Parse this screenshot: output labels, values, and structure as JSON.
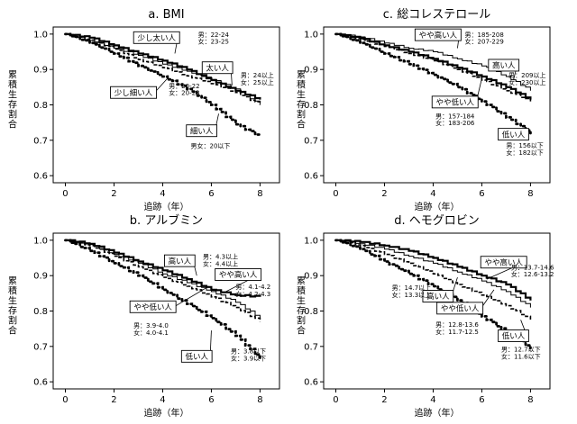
{
  "chart_data": [
    {
      "type": "line",
      "title": "a. BMI",
      "xlabel": "追跡（年）",
      "ylabel": "累積生存割合",
      "xlim": [
        -0.5,
        8.8
      ],
      "ylim": [
        0.58,
        1.02
      ],
      "xticks": [
        "0",
        "2",
        "4",
        "6",
        "8"
      ],
      "yticks": [
        "0.6",
        "0.7",
        "0.8",
        "0.9",
        "1.0"
      ],
      "series": [
        {
          "name": "少し太い人",
          "style": "thin",
          "x": [
            0,
            1,
            2,
            3,
            4,
            5,
            6,
            7,
            8
          ],
          "y": [
            1.0,
            0.982,
            0.96,
            0.94,
            0.915,
            0.895,
            0.872,
            0.845,
            0.8
          ]
        },
        {
          "name": "太い人",
          "style": "thick",
          "x": [
            0,
            1,
            2,
            3,
            4,
            5,
            6,
            7,
            8
          ],
          "y": [
            1.0,
            0.99,
            0.968,
            0.945,
            0.925,
            0.9,
            0.87,
            0.84,
            0.815
          ]
        },
        {
          "name": "少し細い人",
          "style": "dashed",
          "x": [
            0,
            1,
            2,
            3,
            4,
            5,
            6,
            7,
            8
          ],
          "y": [
            1.0,
            0.983,
            0.958,
            0.928,
            0.905,
            0.882,
            0.86,
            0.835,
            0.8
          ]
        },
        {
          "name": "細い人",
          "style": "dotted",
          "x": [
            0,
            1,
            2,
            3,
            4,
            5,
            6,
            7,
            8
          ],
          "y": [
            1.0,
            0.975,
            0.945,
            0.91,
            0.88,
            0.845,
            0.8,
            0.745,
            0.71
          ]
        }
      ],
      "annotations": [
        {
          "text": "少し太い人",
          "boxed": true,
          "cx": 3.75,
          "cy": 0.99,
          "tx": 4.5,
          "ty": 0.945
        },
        {
          "text": "太い人",
          "boxed": true,
          "cx": 6.25,
          "cy": 0.905,
          "tx": 6.85,
          "ty": 0.855
        },
        {
          "text": "少し細い人",
          "boxed": true,
          "cx": 2.8,
          "cy": 0.835,
          "tx": 4.2,
          "ty": 0.875
        },
        {
          "text": "細い人",
          "boxed": true,
          "cx": 5.6,
          "cy": 0.727,
          "tx": 6.3,
          "ty": 0.775
        },
        {
          "text": "男：22-24",
          "x": 5.45,
          "y": 1.0
        },
        {
          "text": "女：23-25",
          "x": 5.45,
          "y": 0.98
        },
        {
          "text": "男：24以上",
          "x": 7.2,
          "y": 0.885
        },
        {
          "text": "女：25以上",
          "x": 7.2,
          "y": 0.865
        },
        {
          "text": "男：20-22",
          "x": 4.25,
          "y": 0.855
        },
        {
          "text": "女：20-23",
          "x": 4.25,
          "y": 0.835
        },
        {
          "text": "男女：20以下",
          "x": 5.15,
          "y": 0.685
        }
      ]
    },
    {
      "type": "line",
      "title": "c. 総コレステロール",
      "xlabel": "追跡（年）",
      "ylabel": "累積生存割合",
      "xlim": [
        -0.5,
        8.8
      ],
      "ylim": [
        0.58,
        1.02
      ],
      "xticks": [
        "0",
        "2",
        "4",
        "6",
        "8"
      ],
      "yticks": [
        "0.6",
        "0.7",
        "0.8",
        "0.9",
        "1.0"
      ],
      "series": [
        {
          "name": "やや高い人",
          "style": "thin",
          "x": [
            0,
            1,
            2,
            3,
            4,
            5,
            6,
            7,
            8
          ],
          "y": [
            1.0,
            0.992,
            0.975,
            0.96,
            0.95,
            0.93,
            0.91,
            0.88,
            0.84
          ]
        },
        {
          "name": "高い人",
          "style": "thick",
          "x": [
            0,
            1,
            2,
            3,
            4,
            5,
            6,
            7,
            8
          ],
          "y": [
            1.0,
            0.988,
            0.968,
            0.95,
            0.93,
            0.905,
            0.88,
            0.85,
            0.815
          ]
        },
        {
          "name": "やや低い人",
          "style": "dashed",
          "x": [
            0,
            1,
            2,
            3,
            4,
            5,
            6,
            7,
            8
          ],
          "y": [
            1.0,
            0.985,
            0.965,
            0.945,
            0.925,
            0.9,
            0.87,
            0.84,
            0.81
          ]
        },
        {
          "name": "低い人",
          "style": "dotted",
          "x": [
            0,
            1,
            2,
            3,
            4,
            5,
            6,
            7,
            8
          ],
          "y": [
            1.0,
            0.975,
            0.945,
            0.915,
            0.885,
            0.85,
            0.81,
            0.765,
            0.72
          ]
        }
      ],
      "annotations": [
        {
          "text": "やや高い人",
          "boxed": true,
          "cx": 4.2,
          "cy": 0.998,
          "tx": 5.0,
          "ty": 0.96
        },
        {
          "text": "高い人",
          "boxed": true,
          "cx": 6.9,
          "cy": 0.912,
          "tx": 7.3,
          "ty": 0.87
        },
        {
          "text": "やや低い人",
          "boxed": true,
          "cx": 4.9,
          "cy": 0.808,
          "tx": 6.0,
          "ty": 0.875
        },
        {
          "text": "低い人",
          "boxed": true,
          "cx": 7.3,
          "cy": 0.717,
          "tx": 7.75,
          "ty": 0.73
        },
        {
          "text": "男：185-208",
          "x": 5.3,
          "y": 1.0
        },
        {
          "text": "女：207-229",
          "x": 5.3,
          "y": 0.98
        },
        {
          "text": "男：209以上",
          "x": 7.1,
          "y": 0.885
        },
        {
          "text": "女：230以上",
          "x": 7.1,
          "y": 0.865
        },
        {
          "text": "男：157-184",
          "x": 4.1,
          "y": 0.77
        },
        {
          "text": "女：183-206",
          "x": 4.1,
          "y": 0.75
        },
        {
          "text": "男：156以下",
          "x": 7.0,
          "y": 0.687
        },
        {
          "text": "女：182以下",
          "x": 7.0,
          "y": 0.667
        }
      ]
    },
    {
      "type": "line",
      "title": "b. アルブミン",
      "xlabel": "追跡（年）",
      "ylabel": "累積生存割合",
      "xlim": [
        -0.5,
        8.8
      ],
      "ylim": [
        0.58,
        1.02
      ],
      "xticks": [
        "0",
        "2",
        "4",
        "6",
        "8"
      ],
      "yticks": [
        "0.6",
        "0.7",
        "0.8",
        "0.9",
        "1.0"
      ],
      "series": [
        {
          "name": "高い人",
          "style": "thick",
          "x": [
            0,
            1,
            2,
            3,
            4,
            5,
            6,
            7,
            8
          ],
          "y": [
            1.0,
            0.99,
            0.965,
            0.94,
            0.915,
            0.89,
            0.86,
            0.845,
            0.84
          ]
        },
        {
          "name": "やや高い人",
          "style": "thin",
          "x": [
            0,
            1,
            2,
            3,
            4,
            5,
            6,
            7,
            8
          ],
          "y": [
            1.0,
            0.988,
            0.96,
            0.935,
            0.905,
            0.88,
            0.855,
            0.825,
            0.78
          ]
        },
        {
          "name": "やや低い人",
          "style": "dashed",
          "x": [
            0,
            1,
            2,
            3,
            4,
            5,
            6,
            7,
            8
          ],
          "y": [
            1.0,
            0.985,
            0.955,
            0.925,
            0.895,
            0.87,
            0.84,
            0.81,
            0.77
          ]
        },
        {
          "name": "低い人",
          "style": "dotted",
          "x": [
            0,
            1,
            2,
            3,
            4,
            5,
            6,
            7,
            8
          ],
          "y": [
            1.0,
            0.97,
            0.935,
            0.9,
            0.86,
            0.82,
            0.78,
            0.73,
            0.665
          ]
        }
      ],
      "annotations": [
        {
          "text": "高い人",
          "boxed": true,
          "cx": 4.7,
          "cy": 0.942,
          "tx": 5.4,
          "ty": 0.9
        },
        {
          "text": "やや高い人",
          "boxed": true,
          "cx": 7.1,
          "cy": 0.903,
          "tx": 6.6,
          "ty": 0.855
        },
        {
          "text": "やや低い人",
          "boxed": true,
          "cx": 3.6,
          "cy": 0.812,
          "tx": 5.9,
          "ty": 0.87
        },
        {
          "text": "低い人",
          "boxed": true,
          "cx": 5.4,
          "cy": 0.672,
          "tx": 6.0,
          "ty": 0.745
        },
        {
          "text": "男：4.3以上",
          "x": 5.65,
          "y": 0.955
        },
        {
          "text": "女：4.4以上",
          "x": 5.65,
          "y": 0.935
        },
        {
          "text": "男：4.1-4.2",
          "x": 7.0,
          "y": 0.87
        },
        {
          "text": "女：4.2-4.3",
          "x": 7.0,
          "y": 0.85
        },
        {
          "text": "男：3.9-4.0",
          "x": 2.8,
          "y": 0.76
        },
        {
          "text": "女：4.0-4.1",
          "x": 2.8,
          "y": 0.74
        },
        {
          "text": "男：3.8以下",
          "x": 6.8,
          "y": 0.688
        },
        {
          "text": "女：3.9以下",
          "x": 6.8,
          "y": 0.668
        }
      ]
    },
    {
      "type": "line",
      "title": "d. ヘモグロビン",
      "xlabel": "追跡（年）",
      "ylabel": "累積生存割合",
      "xlim": [
        -0.5,
        8.8
      ],
      "ylim": [
        0.58,
        1.02
      ],
      "xticks": [
        "0",
        "2",
        "4",
        "6",
        "8"
      ],
      "yticks": [
        "0.6",
        "0.7",
        "0.8",
        "0.9",
        "1.0"
      ],
      "series": [
        {
          "name": "やや高い人",
          "style": "thin",
          "x": [
            0,
            1,
            2,
            3,
            4,
            5,
            6,
            7,
            8
          ],
          "y": [
            1.0,
            0.99,
            0.975,
            0.955,
            0.935,
            0.91,
            0.885,
            0.855,
            0.81
          ]
        },
        {
          "name": "高い人",
          "style": "thick",
          "x": [
            0,
            1,
            2,
            3,
            4,
            5,
            6,
            7,
            8
          ],
          "y": [
            1.0,
            0.995,
            0.985,
            0.97,
            0.95,
            0.925,
            0.9,
            0.875,
            0.83
          ]
        },
        {
          "name": "やや低い人",
          "style": "dashed",
          "x": [
            0,
            1,
            2,
            3,
            4,
            5,
            6,
            7,
            8
          ],
          "y": [
            1.0,
            0.985,
            0.96,
            0.935,
            0.905,
            0.875,
            0.845,
            0.815,
            0.775
          ]
        },
        {
          "name": "低い人",
          "style": "dotted",
          "x": [
            0,
            1,
            2,
            3,
            4,
            5,
            6,
            7,
            8
          ],
          "y": [
            1.0,
            0.975,
            0.94,
            0.905,
            0.87,
            0.83,
            0.785,
            0.74,
            0.695
          ]
        }
      ],
      "annotations": [
        {
          "text": "やや高い人",
          "boxed": true,
          "cx": 6.9,
          "cy": 0.938,
          "tx": 6.2,
          "ty": 0.89
        },
        {
          "text": "高い人",
          "boxed": true,
          "cx": 4.2,
          "cy": 0.842,
          "tx": 5.0,
          "ty": 0.895
        },
        {
          "text": "やや低い人",
          "boxed": true,
          "cx": 5.1,
          "cy": 0.808,
          "tx": 6.5,
          "ty": 0.86
        },
        {
          "text": "低い人",
          "boxed": true,
          "cx": 7.3,
          "cy": 0.73,
          "tx": 7.6,
          "ty": 0.775
        },
        {
          "text": "男：13.7-14.6",
          "x": 7.2,
          "y": 0.925
        },
        {
          "text": "女：12.6-13.2",
          "x": 7.2,
          "y": 0.905
        },
        {
          "text": "男：14.7以上",
          "x": 2.3,
          "y": 0.867
        },
        {
          "text": "女：13.3以上",
          "x": 2.3,
          "y": 0.847
        },
        {
          "text": "男：12.8-13.6",
          "x": 4.1,
          "y": 0.763
        },
        {
          "text": "女：11.7-12.5",
          "x": 4.1,
          "y": 0.743
        },
        {
          "text": "男：12.7以下",
          "x": 6.8,
          "y": 0.693
        },
        {
          "text": "女：11.6以下",
          "x": 6.8,
          "y": 0.673
        }
      ]
    }
  ]
}
